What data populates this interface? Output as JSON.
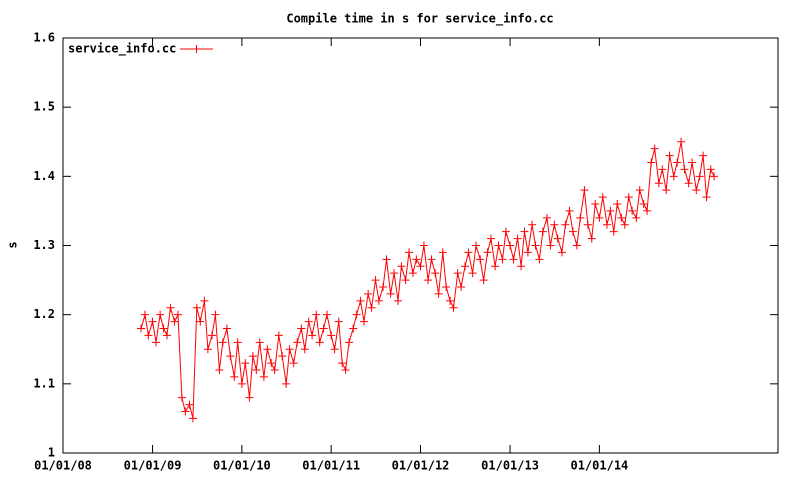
{
  "chart_data": {
    "type": "line",
    "title": "Compile time in s for service_info.cc",
    "y_label": "s",
    "x": [
      "2008-11-15",
      "2008-12-01",
      "2008-12-15",
      "2009-01-01",
      "2009-01-15",
      "2009-02-01",
      "2009-02-15",
      "2009-03-01",
      "2009-03-15",
      "2009-04-01",
      "2009-04-15",
      "2009-05-01",
      "2009-05-15",
      "2009-06-01",
      "2009-06-15",
      "2009-07-01",
      "2009-07-15",
      "2009-08-01",
      "2009-08-15",
      "2009-09-01",
      "2009-09-15",
      "2009-10-01",
      "2009-10-15",
      "2009-11-01",
      "2009-11-15",
      "2009-12-01",
      "2009-12-15",
      "2010-01-01",
      "2010-01-15",
      "2010-02-01",
      "2010-02-15",
      "2010-03-01",
      "2010-03-15",
      "2010-04-01",
      "2010-04-15",
      "2010-05-01",
      "2010-05-15",
      "2010-06-01",
      "2010-06-15",
      "2010-07-01",
      "2010-07-15",
      "2010-08-01",
      "2010-08-15",
      "2010-09-01",
      "2010-09-15",
      "2010-10-01",
      "2010-10-15",
      "2010-11-01",
      "2010-11-15",
      "2010-12-01",
      "2010-12-15",
      "2011-01-01",
      "2011-01-15",
      "2011-02-01",
      "2011-02-15",
      "2011-03-01",
      "2011-03-15",
      "2011-04-01",
      "2011-04-15",
      "2011-05-01",
      "2011-05-15",
      "2011-06-01",
      "2011-06-15",
      "2011-07-01",
      "2011-07-15",
      "2011-08-01",
      "2011-08-15",
      "2011-09-01",
      "2011-09-15",
      "2011-10-01",
      "2011-10-15",
      "2011-11-01",
      "2011-11-15",
      "2011-12-01",
      "2011-12-15",
      "2012-01-01",
      "2012-01-15",
      "2012-02-01",
      "2012-02-15",
      "2012-03-01",
      "2012-03-15",
      "2012-04-01",
      "2012-04-15",
      "2012-05-01",
      "2012-05-15",
      "2012-06-01",
      "2012-06-15",
      "2012-07-01",
      "2012-07-15",
      "2012-08-01",
      "2012-08-15",
      "2012-09-01",
      "2012-09-15",
      "2012-10-01",
      "2012-10-15",
      "2012-11-01",
      "2012-11-15",
      "2012-12-01",
      "2012-12-15",
      "2013-01-01",
      "2013-01-15",
      "2013-02-01",
      "2013-02-15",
      "2013-03-01",
      "2013-03-15",
      "2013-04-01",
      "2013-04-15",
      "2013-05-01",
      "2013-05-15",
      "2013-06-01",
      "2013-06-15",
      "2013-07-01",
      "2013-07-15",
      "2013-08-01",
      "2013-08-15",
      "2013-09-01",
      "2013-09-15",
      "2013-10-01",
      "2013-10-15",
      "2013-11-01",
      "2013-11-15",
      "2013-12-01",
      "2013-12-15",
      "2014-01-01",
      "2014-01-15",
      "2014-02-01",
      "2014-02-15",
      "2014-03-01",
      "2014-03-15",
      "2014-04-01",
      "2014-04-15",
      "2014-05-01",
      "2014-05-15",
      "2014-06-01",
      "2014-06-15",
      "2014-07-01",
      "2014-07-15",
      "2014-08-01",
      "2014-08-15",
      "2014-09-01",
      "2014-09-15",
      "2014-10-01",
      "2014-10-15",
      "2014-11-01",
      "2014-11-15",
      "2014-12-01",
      "2014-12-15",
      "2015-01-01",
      "2015-01-15",
      "2015-02-01",
      "2015-02-15",
      "2015-03-01",
      "2015-03-15",
      "2015-04-01",
      "2015-04-15"
    ],
    "series": [
      {
        "name": "service_info.cc",
        "color": "#ff0000",
        "values": [
          1.18,
          1.2,
          1.17,
          1.19,
          1.16,
          1.2,
          1.18,
          1.17,
          1.21,
          1.19,
          1.2,
          1.08,
          1.06,
          1.07,
          1.05,
          1.21,
          1.19,
          1.22,
          1.15,
          1.17,
          1.2,
          1.12,
          1.16,
          1.18,
          1.14,
          1.11,
          1.16,
          1.1,
          1.13,
          1.08,
          1.14,
          1.12,
          1.16,
          1.11,
          1.15,
          1.13,
          1.12,
          1.17,
          1.14,
          1.1,
          1.15,
          1.13,
          1.16,
          1.18,
          1.15,
          1.19,
          1.17,
          1.2,
          1.16,
          1.18,
          1.2,
          1.17,
          1.15,
          1.19,
          1.13,
          1.12,
          1.16,
          1.18,
          1.2,
          1.22,
          1.19,
          1.23,
          1.21,
          1.25,
          1.22,
          1.24,
          1.28,
          1.23,
          1.26,
          1.22,
          1.27,
          1.25,
          1.29,
          1.26,
          1.28,
          1.27,
          1.3,
          1.25,
          1.28,
          1.26,
          1.23,
          1.29,
          1.24,
          1.22,
          1.21,
          1.26,
          1.24,
          1.27,
          1.29,
          1.26,
          1.3,
          1.28,
          1.25,
          1.29,
          1.31,
          1.27,
          1.3,
          1.28,
          1.32,
          1.3,
          1.28,
          1.31,
          1.27,
          1.32,
          1.29,
          1.33,
          1.3,
          1.28,
          1.32,
          1.34,
          1.3,
          1.33,
          1.31,
          1.29,
          1.33,
          1.35,
          1.32,
          1.3,
          1.34,
          1.38,
          1.33,
          1.31,
          1.36,
          1.34,
          1.37,
          1.33,
          1.35,
          1.32,
          1.36,
          1.34,
          1.33,
          1.37,
          1.35,
          1.34,
          1.38,
          1.36,
          1.35,
          1.42,
          1.44,
          1.39,
          1.41,
          1.38,
          1.43,
          1.4,
          1.42,
          1.45,
          1.41,
          1.39,
          1.42,
          1.38,
          1.4,
          1.43,
          1.37,
          1.41,
          1.4
        ]
      }
    ],
    "xlim": [
      "2008-01-01",
      "2016-01-01"
    ],
    "xticks": [
      {
        "value": "2008-01-01",
        "label": "01/01/08"
      },
      {
        "value": "2009-01-01",
        "label": "01/01/09"
      },
      {
        "value": "2010-01-01",
        "label": "01/01/10"
      },
      {
        "value": "2011-01-01",
        "label": "01/01/11"
      },
      {
        "value": "2012-01-01",
        "label": "01/01/12"
      },
      {
        "value": "2013-01-01",
        "label": "01/01/13"
      },
      {
        "value": "2014-01-01",
        "label": "01/01/14"
      }
    ],
    "ylim": [
      1,
      1.6
    ],
    "yticks": [
      1,
      1.1,
      1.2,
      1.3,
      1.4,
      1.5,
      1.6
    ],
    "legend": "upper-left"
  }
}
